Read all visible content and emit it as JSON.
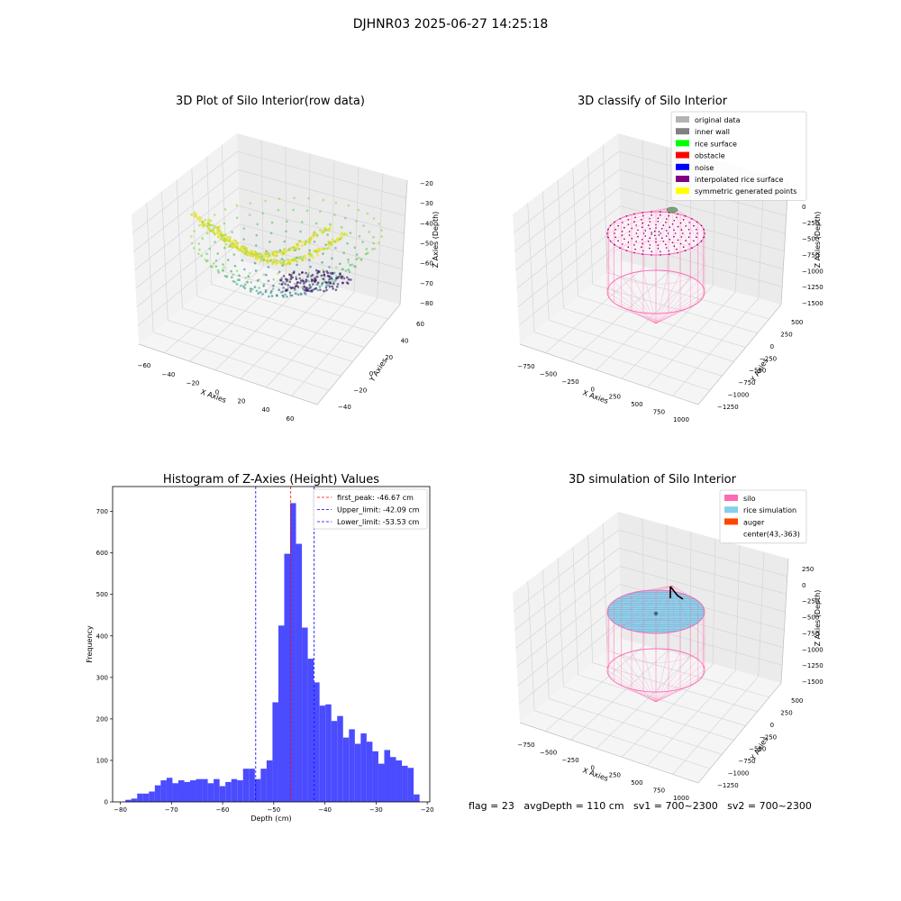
{
  "suptitle": "DJHNR03 2025-06-27 14:25:18",
  "footer": {
    "text": "flag = 23   avgDepth = 110 cm   sv1 = 700~2300   sv2 = 700~2300"
  },
  "chart_data": [
    {
      "type": "scatter",
      "projection": "3d",
      "title": "3D Plot of Silo Interior(row data)",
      "xlabel": "X Axies",
      "ylabel": "Y Axies",
      "zlabel": "Z Axies (Depth)",
      "x_ticks": [
        "−60",
        "−40",
        "−20",
        "0",
        "20",
        "40",
        "60"
      ],
      "y_ticks": [
        "−40",
        "−20",
        "0",
        "20",
        "40",
        "60"
      ],
      "z_ticks": [
        "−20",
        "−30",
        "−40",
        "−50",
        "−60",
        "−70",
        "−80"
      ],
      "xlim": [
        -65,
        65
      ],
      "ylim": [
        -45,
        65
      ],
      "zlim": [
        -85,
        -18
      ],
      "colormap": "viridis",
      "grid": true
    },
    {
      "type": "scatter",
      "projection": "3d",
      "title": "3D classify of Silo Interior",
      "xlabel": "X Axies",
      "ylabel": "Y Axies",
      "zlabel": "Z Axies (Depth)",
      "x_ticks": [
        "−750",
        "−500",
        "−250",
        "0",
        "250",
        "500",
        "750",
        "1000"
      ],
      "y_ticks": [
        "500",
        "250",
        "0",
        "−250",
        "−500",
        "−750",
        "−1000",
        "−1250"
      ],
      "z_ticks": [
        "0",
        "−250",
        "−500",
        "−750",
        "−1000",
        "−1250",
        "−1500"
      ],
      "legend_placement": "top-right",
      "legend": [
        {
          "label": "original data",
          "color": "#b3b3b3"
        },
        {
          "label": "inner wall",
          "color": "#808080"
        },
        {
          "label": "rice surface",
          "color": "#00ff00"
        },
        {
          "label": "obstacle",
          "color": "#ff0000"
        },
        {
          "label": "noise",
          "color": "#0000ff"
        },
        {
          "label": "interpolated rice surface",
          "color": "#800080"
        },
        {
          "label": "symmetric generated points",
          "color": "#ffff00"
        }
      ],
      "grid": true
    },
    {
      "type": "bar",
      "title": "Histogram of Z-Axies (Height) Values",
      "xlabel": "Depth (cm)",
      "ylabel": "Frequency",
      "xlim": [
        -81.5,
        -19.5
      ],
      "ylim": [
        0,
        760
      ],
      "x_ticks": [
        -80,
        -70,
        -60,
        -50,
        -40,
        -30,
        -20
      ],
      "y_ticks": [
        0,
        100,
        200,
        300,
        400,
        500,
        600,
        700
      ],
      "bin_start": -79,
      "bin_width": 1.15,
      "values": [
        5,
        8,
        20,
        20,
        25,
        40,
        52,
        58,
        45,
        52,
        48,
        52,
        55,
        55,
        45,
        55,
        38,
        48,
        55,
        52,
        80,
        80,
        55,
        80,
        100,
        240,
        425,
        598,
        720,
        622,
        420,
        345,
        288,
        232,
        235,
        195,
        207,
        155,
        175,
        140,
        165,
        145,
        122,
        92,
        125,
        108,
        100,
        87,
        82,
        18
      ],
      "bar_color": "#4b4bff",
      "vlines": [
        {
          "label": "first_peak: -46.67 cm",
          "x": -46.67,
          "color": "#ff0000"
        },
        {
          "label": "Upper_limit: -42.09 cm",
          "x": -42.09,
          "color": "#0000ff"
        },
        {
          "label": "Lower_limit: -53.53 cm",
          "x": -53.53,
          "color": "#0000ff"
        }
      ],
      "legend_placement": "top-right",
      "grid": false
    },
    {
      "type": "scatter",
      "projection": "3d",
      "title": "3D simulation of Silo Interior",
      "xlabel": "X Axies",
      "ylabel": "Y Axies",
      "zlabel": "Z Axies (Depth)",
      "x_ticks": [
        "−750",
        "−500",
        "−250",
        "0",
        "250",
        "500",
        "750",
        "1000"
      ],
      "y_ticks": [
        "500",
        "250",
        "0",
        "−250",
        "−500",
        "−750",
        "−1000",
        "−1250"
      ],
      "z_ticks": [
        "250",
        "0",
        "−250",
        "−500",
        "−750",
        "−1000",
        "−1250",
        "−1500"
      ],
      "legend_placement": "top-right",
      "legend": [
        {
          "label": "silo",
          "color": "#ff69b4"
        },
        {
          "label": "rice simulation",
          "color": "#87ceeb"
        },
        {
          "label": "auger",
          "color": "#ff4500"
        },
        {
          "label": "center(43,-363)",
          "color": ""
        }
      ],
      "grid": true
    }
  ]
}
